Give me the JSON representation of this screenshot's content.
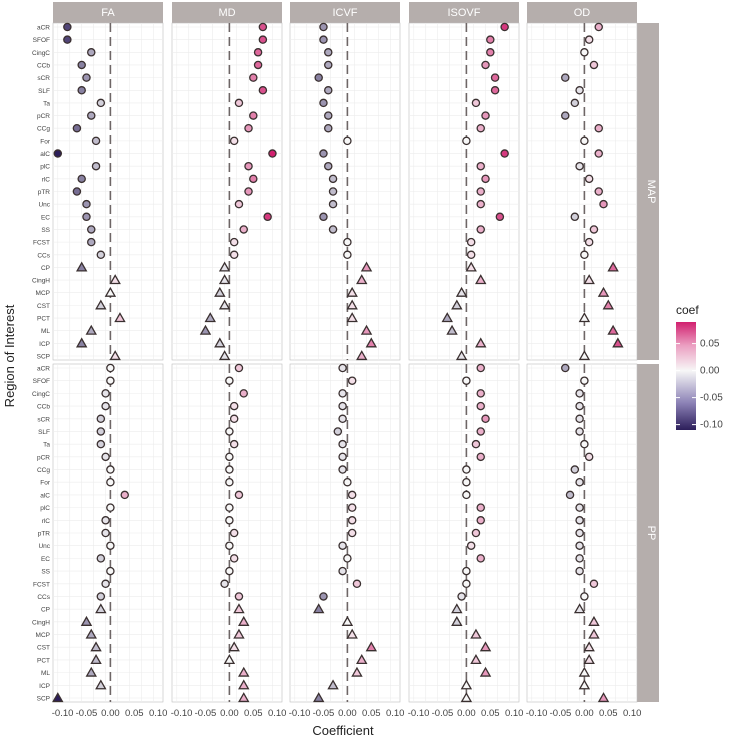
{
  "chart_data": {
    "type": "scatter",
    "x_label": "Coefficient",
    "y_label": "Region of Interest",
    "x_tick_labels": [
      "-0.10",
      "-0.05",
      "0.00",
      "0.05",
      "0.10"
    ],
    "xlim": [
      -0.12,
      0.11
    ],
    "column_facets": [
      "FA",
      "MD",
      "ICVF",
      "ISOVF",
      "OD"
    ],
    "row_facets": [
      "MAP",
      "PP"
    ],
    "regions": [
      "aCR",
      "SFOF",
      "CingC",
      "CCb",
      "sCR",
      "SLF",
      "Ta",
      "pCR",
      "CCg",
      "For",
      "alC",
      "plC",
      "rlC",
      "pTR",
      "Unc",
      "EC",
      "SS",
      "FCST",
      "CCs",
      "CP",
      "CingH",
      "MCP",
      "CST",
      "PCT",
      "ML",
      "ICP",
      "SCP"
    ],
    "shape_by_region": [
      "circle",
      "circle",
      "circle",
      "circle",
      "circle",
      "circle",
      "circle",
      "circle",
      "circle",
      "circle",
      "circle",
      "circle",
      "circle",
      "circle",
      "circle",
      "circle",
      "circle",
      "circle",
      "circle",
      "triangle",
      "triangle",
      "triangle",
      "triangle",
      "triangle",
      "triangle",
      "triangle",
      "triangle"
    ],
    "legend": {
      "title": "coef",
      "labels": [
        "0.05",
        "0.00",
        "-0.05",
        "-0.10"
      ],
      "values": [
        0.05,
        0.0,
        -0.05,
        -0.1
      ],
      "range": [
        -0.11,
        0.09
      ],
      "colors": {
        "low": "#2c1e5a",
        "mid": "#f7f7f7",
        "high": "#d1206f"
      }
    },
    "reference_line_x": 0,
    "colors": {
      "strip_bg": "#b5aeac",
      "panel_bg": "#ffffff",
      "grid": "#ececec",
      "ref_line": "#6e6666"
    },
    "panels": {
      "MAP": {
        "FA": [
          -0.09,
          -0.09,
          -0.04,
          -0.06,
          -0.05,
          -0.06,
          -0.02,
          -0.04,
          -0.07,
          -0.03,
          -0.11,
          -0.03,
          -0.06,
          -0.07,
          -0.05,
          -0.05,
          -0.04,
          -0.04,
          -0.02,
          -0.06,
          0.01,
          0.0,
          -0.02,
          0.02,
          -0.04,
          -0.06,
          0.01
        ],
        "MD": [
          0.07,
          0.07,
          0.06,
          0.06,
          0.05,
          0.07,
          0.02,
          0.05,
          0.04,
          0.01,
          0.09,
          0.04,
          0.05,
          0.04,
          0.02,
          0.08,
          0.03,
          0.01,
          0.01,
          -0.01,
          -0.01,
          -0.02,
          -0.01,
          -0.04,
          -0.05,
          -0.02,
          -0.01
        ],
        "ICVF": [
          -0.05,
          -0.05,
          -0.04,
          -0.04,
          -0.06,
          -0.04,
          -0.05,
          -0.04,
          -0.04,
          0.0,
          -0.05,
          -0.04,
          -0.03,
          -0.03,
          -0.03,
          -0.05,
          -0.03,
          0.0,
          0.0,
          0.04,
          0.03,
          0.01,
          0.01,
          0.01,
          0.04,
          0.05,
          0.03
        ],
        "ISOVF": [
          0.08,
          0.05,
          0.05,
          0.04,
          0.06,
          0.06,
          0.02,
          0.04,
          0.03,
          0.0,
          0.08,
          0.03,
          0.04,
          0.03,
          0.03,
          0.07,
          0.03,
          0.01,
          0.01,
          0.01,
          0.03,
          -0.01,
          -0.02,
          -0.04,
          -0.03,
          0.03,
          -0.01
        ],
        "OD": [
          0.03,
          0.01,
          0.0,
          0.02,
          -0.04,
          -0.01,
          -0.02,
          -0.04,
          0.03,
          0.0,
          0.03,
          -0.01,
          0.01,
          0.03,
          0.04,
          -0.02,
          0.02,
          0.01,
          0.0,
          0.06,
          0.01,
          0.04,
          0.05,
          0.0,
          0.06,
          0.07,
          0.0
        ]
      },
      "PP": {
        "FA": [
          0.0,
          0.0,
          -0.01,
          -0.01,
          -0.02,
          -0.02,
          -0.02,
          -0.01,
          0.0,
          0.0,
          0.03,
          0.0,
          -0.01,
          -0.01,
          0.0,
          -0.02,
          0.0,
          -0.01,
          -0.02,
          -0.02,
          -0.05,
          -0.04,
          -0.03,
          -0.03,
          -0.04,
          -0.02,
          -0.11
        ],
        "MD": [
          0.02,
          0.0,
          0.03,
          0.01,
          0.01,
          0.0,
          0.01,
          0.0,
          0.0,
          0.0,
          0.02,
          0.0,
          0.0,
          0.01,
          0.0,
          0.01,
          0.0,
          -0.01,
          0.02,
          0.02,
          0.03,
          0.02,
          0.01,
          0.0,
          0.03,
          0.03,
          0.03
        ],
        "ICVF": [
          -0.01,
          0.01,
          -0.01,
          -0.01,
          -0.01,
          -0.02,
          -0.01,
          -0.01,
          -0.01,
          0.0,
          0.01,
          0.01,
          0.01,
          0.01,
          -0.01,
          0.0,
          -0.01,
          0.02,
          -0.05,
          -0.06,
          0.0,
          0.01,
          0.05,
          0.03,
          0.02,
          -0.03,
          -0.06
        ],
        "ISOVF": [
          0.03,
          0.0,
          0.03,
          0.03,
          0.04,
          0.03,
          0.02,
          0.03,
          0.0,
          0.0,
          0.0,
          0.03,
          0.03,
          0.02,
          0.01,
          0.03,
          0.0,
          0.0,
          -0.01,
          -0.02,
          -0.02,
          0.02,
          0.04,
          0.02,
          0.04,
          0.0,
          0.0
        ],
        "OD": [
          -0.04,
          0.0,
          -0.01,
          -0.01,
          -0.01,
          -0.01,
          0.0,
          0.01,
          -0.02,
          -0.01,
          -0.03,
          -0.01,
          -0.01,
          -0.01,
          -0.01,
          -0.01,
          -0.01,
          0.02,
          0.0,
          -0.01,
          0.02,
          0.02,
          0.01,
          0.01,
          0.0,
          0.0,
          0.04
        ]
      }
    }
  }
}
